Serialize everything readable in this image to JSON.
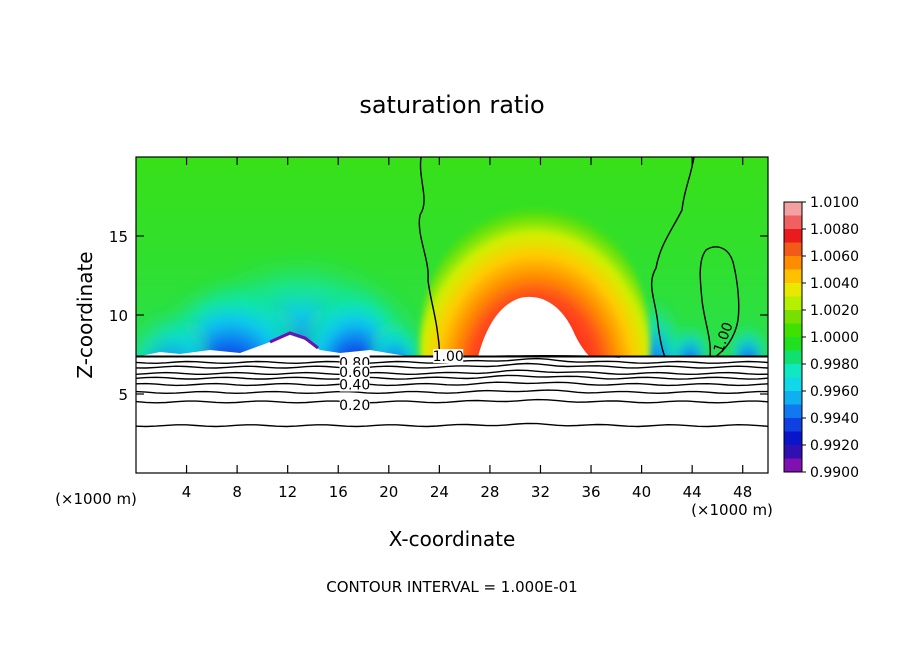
{
  "chart_data": {
    "type": "heatmap",
    "title": "saturation ratio",
    "xlabel": "X-coordinate",
    "ylabel": "Z-coordinate",
    "x_unit_left": "(×1000 m)",
    "x_unit_right": "(×1000 m)",
    "xlim": [
      0,
      50
    ],
    "ylim": [
      0,
      20
    ],
    "x_ticks": [
      4,
      8,
      12,
      16,
      20,
      24,
      28,
      32,
      36,
      40,
      44,
      48
    ],
    "y_ticks": [
      5,
      10,
      15
    ],
    "contour_interval_text": "CONTOUR INTERVAL = 1.000E-01",
    "colorbar": {
      "min": 0.99,
      "max": 1.01,
      "labels": [
        "1.0100",
        "1.0080",
        "1.0060",
        "1.0040",
        "1.0020",
        "1.0000",
        "0.9980",
        "0.9960",
        "0.9940",
        "0.9920",
        "0.9900"
      ],
      "colors": [
        "#f3a0a0",
        "#f06060",
        "#ea1b1b",
        "#f25a1a",
        "#ff8c00",
        "#ffc000",
        "#e8e800",
        "#b4f000",
        "#78e000",
        "#40e000",
        "#20e020",
        "#10e070",
        "#10e8c0",
        "#10d8e8",
        "#10b0f0",
        "#1078f0",
        "#1040e0",
        "#0a14c8",
        "#3010b0",
        "#8010b0"
      ]
    },
    "contour_labels": [
      {
        "text": "1.00",
        "x": 24.7,
        "y": 7.4
      },
      {
        "text": "1.00",
        "x": 46.8,
        "y": 8.8
      },
      {
        "text": "0.80",
        "x": 17.3,
        "y": 7.0
      },
      {
        "text": "0.60",
        "x": 17.3,
        "y": 6.4
      },
      {
        "text": "0.40",
        "x": 17.3,
        "y": 5.6
      },
      {
        "text": "0.20",
        "x": 17.3,
        "y": 4.3
      }
    ],
    "saturation_top": 7.3,
    "subsaturated_contours": [
      7.0,
      6.7,
      6.3,
      6.0,
      5.6,
      5.1,
      4.5,
      3.0
    ]
  }
}
